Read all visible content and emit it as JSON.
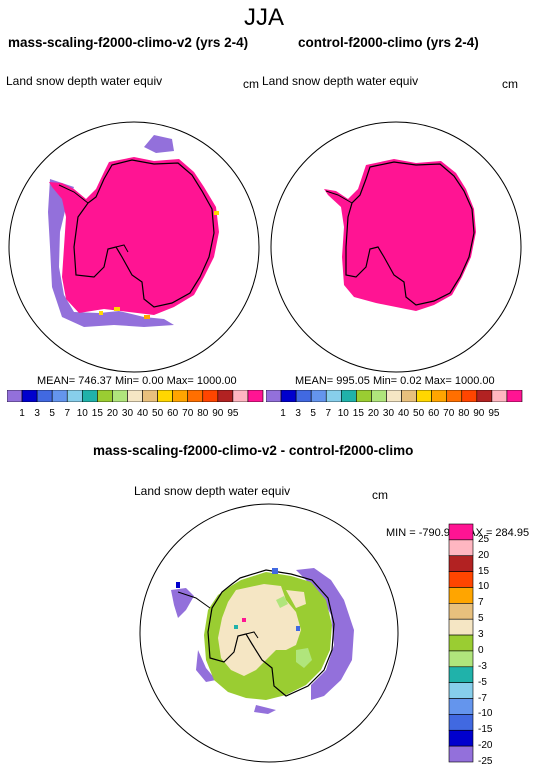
{
  "page": {
    "title": "JJA"
  },
  "panels": [
    {
      "heading": "mass-scaling-f2000-climo-v2 (yrs 2-4)",
      "variable": "Land snow depth water equiv",
      "units": "cm",
      "stats": "MEAN= 746.37  Min=   0.00  Max= 1000.00"
    },
    {
      "heading": "control-f2000-climo (yrs 2-4)",
      "variable": "Land snow depth water equiv",
      "units": "cm",
      "stats": "MEAN= 995.05  Min=   0.02  Max= 1000.00"
    }
  ],
  "diff": {
    "heading": "mass-scaling-f2000-climo-v2 - control-f2000-climo",
    "variable": "Land snow depth water equiv",
    "units": "cm",
    "stats": "MIN = -790.98 MAX = 284.95"
  },
  "colorbar_top": {
    "ticks": [
      "1",
      "3",
      "5",
      "7",
      "10",
      "15",
      "20",
      "30",
      "40",
      "50",
      "60",
      "70",
      "80",
      "90",
      "95"
    ],
    "colors": [
      "#9370DB",
      "#0000CD",
      "#4169E1",
      "#6495ED",
      "#87CEEB",
      "#20B2AA",
      "#9ACD32",
      "#B0E57C",
      "#F5E6C4",
      "#E8C07D",
      "#FFD700",
      "#FFA500",
      "#FF6F00",
      "#FF4500",
      "#B22222",
      "#FFB6C1",
      "#FF1493"
    ]
  },
  "colorbar_diff": {
    "ticks": [
      "25",
      "20",
      "15",
      "10",
      "7",
      "5",
      "3",
      "0",
      "-3",
      "-5",
      "-7",
      "-10",
      "-15",
      "-20",
      "-25"
    ],
    "colors": [
      "#FF1493",
      "#FFB6C1",
      "#B22222",
      "#FF4500",
      "#FFA500",
      "#E8C07D",
      "#F5E6C4",
      "#9ACD32",
      "#B0E57C",
      "#20B2AA",
      "#87CEEB",
      "#6495ED",
      "#4169E1",
      "#0000CD",
      "#9370DB"
    ]
  }
}
